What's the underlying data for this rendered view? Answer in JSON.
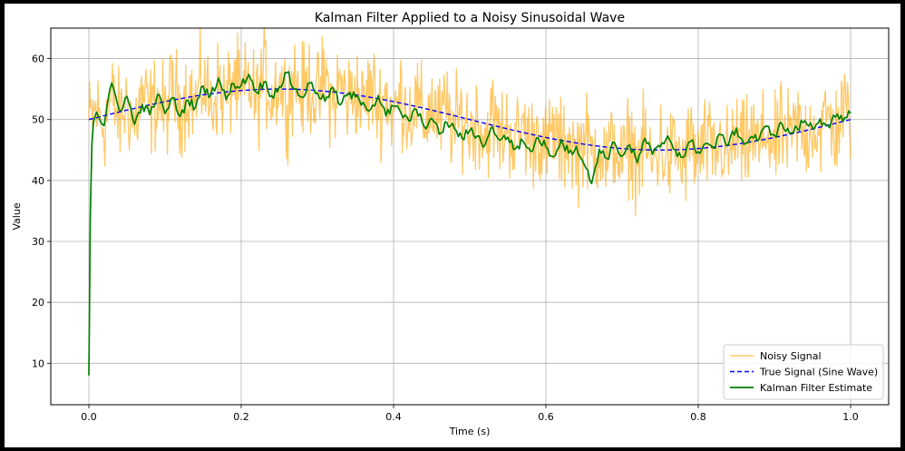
{
  "chart_data": {
    "type": "line",
    "title": "Kalman Filter Applied to a Noisy Sinusoidal Wave",
    "xlabel": "Time (s)",
    "ylabel": "Value",
    "xlim": [
      -0.05,
      1.05
    ],
    "ylim": [
      3.2,
      65.0
    ],
    "xticks": [
      0.0,
      0.2,
      0.4,
      0.6,
      0.8,
      1.0
    ],
    "xtick_labels": [
      "0.0",
      "0.2",
      "0.4",
      "0.6",
      "0.8",
      "1.0"
    ],
    "yticks": [
      10,
      20,
      30,
      40,
      50,
      60
    ],
    "ytick_labels": [
      "10",
      "20",
      "30",
      "40",
      "50",
      "60"
    ],
    "grid": true,
    "legend_position": "bottom-right",
    "series": [
      {
        "name": "Noisy Signal",
        "color": "#FFA500",
        "style": "solid",
        "note_sampling": "approx. 1000 samples; values around true signal with noise std about 4",
        "x": [
          0.0,
          0.01,
          0.02,
          0.03,
          0.04,
          0.05,
          0.06,
          0.07,
          0.08,
          0.09,
          0.1,
          0.11,
          0.12,
          0.13,
          0.14,
          0.15,
          0.16,
          0.17,
          0.18,
          0.19,
          0.2,
          0.21,
          0.22,
          0.23,
          0.24,
          0.25,
          0.26,
          0.27,
          0.28,
          0.29,
          0.3,
          0.31,
          0.32,
          0.33,
          0.34,
          0.35,
          0.36,
          0.37,
          0.38,
          0.39,
          0.4,
          0.41,
          0.42,
          0.43,
          0.44,
          0.45,
          0.46,
          0.47,
          0.48,
          0.49,
          0.5,
          0.51,
          0.52,
          0.53,
          0.54,
          0.55,
          0.56,
          0.57,
          0.58,
          0.59,
          0.6,
          0.61,
          0.62,
          0.63,
          0.64,
          0.65,
          0.66,
          0.67,
          0.68,
          0.69,
          0.7,
          0.71,
          0.72,
          0.73,
          0.74,
          0.75,
          0.76,
          0.77,
          0.78,
          0.79,
          0.8,
          0.81,
          0.82,
          0.83,
          0.84,
          0.85,
          0.86,
          0.87,
          0.88,
          0.89,
          0.9,
          0.91,
          0.92,
          0.93,
          0.94,
          0.95,
          0.96,
          0.97,
          0.98,
          0.99,
          1.0
        ],
        "values": [
          48.5,
          53.8,
          46.0,
          58.5,
          47.2,
          55.4,
          44.0,
          57.6,
          49.0,
          54.9,
          46.5,
          59.2,
          48.8,
          56.3,
          50.1,
          60.5,
          47.6,
          57.8,
          49.5,
          61.2,
          50.3,
          58.7,
          48.2,
          62.0,
          51.6,
          59.4,
          49.1,
          60.8,
          52.3,
          58.2,
          50.0,
          61.5,
          48.7,
          59.6,
          51.2,
          57.3,
          47.9,
          58.9,
          49.6,
          56.1,
          45.8,
          57.4,
          47.1,
          55.0,
          44.6,
          54.8,
          46.2,
          53.5,
          43.7,
          52.6,
          45.0,
          51.9,
          42.5,
          52.8,
          44.3,
          50.4,
          41.6,
          51.7,
          43.2,
          49.8,
          40.1,
          50.6,
          42.0,
          48.7,
          39.5,
          49.9,
          40.8,
          47.6,
          38.2,
          48.9,
          36.4,
          49.3,
          39.0,
          47.1,
          37.5,
          48.4,
          38.8,
          46.9,
          36.8,
          49.0,
          39.6,
          48.2,
          40.5,
          47.8,
          39.2,
          50.1,
          41.3,
          49.5,
          42.6,
          51.2,
          40.9,
          50.7,
          43.8,
          52.4,
          44.1,
          51.8,
          45.6,
          53.9,
          44.7,
          55.2,
          50.9
        ]
      },
      {
        "name": "True Signal (Sine Wave)",
        "color": "#0000FF",
        "style": "dashed",
        "x": [
          0.0,
          0.01,
          0.02,
          0.03,
          0.04,
          0.05,
          0.06,
          0.07,
          0.08,
          0.09,
          0.1,
          0.11,
          0.12,
          0.13,
          0.14,
          0.15,
          0.16,
          0.17,
          0.18,
          0.19,
          0.2,
          0.21,
          0.22,
          0.23,
          0.24,
          0.25,
          0.26,
          0.27,
          0.28,
          0.29,
          0.3,
          0.31,
          0.32,
          0.33,
          0.34,
          0.35,
          0.36,
          0.37,
          0.38,
          0.39,
          0.4,
          0.41,
          0.42,
          0.43,
          0.44,
          0.45,
          0.46,
          0.47,
          0.48,
          0.49,
          0.5,
          0.51,
          0.52,
          0.53,
          0.54,
          0.55,
          0.56,
          0.57,
          0.58,
          0.59,
          0.6,
          0.61,
          0.62,
          0.63,
          0.64,
          0.65,
          0.66,
          0.67,
          0.68,
          0.69,
          0.7,
          0.71,
          0.72,
          0.73,
          0.74,
          0.75,
          0.76,
          0.77,
          0.78,
          0.79,
          0.8,
          0.81,
          0.82,
          0.83,
          0.84,
          0.85,
          0.86,
          0.87,
          0.88,
          0.89,
          0.9,
          0.91,
          0.92,
          0.93,
          0.94,
          0.95,
          0.96,
          0.97,
          0.98,
          0.99,
          1.0
        ],
        "values": [
          50.0,
          50.31,
          50.63,
          50.94,
          51.24,
          51.55,
          51.84,
          52.13,
          52.41,
          52.68,
          52.94,
          53.19,
          53.42,
          53.64,
          53.85,
          54.05,
          54.22,
          54.38,
          54.53,
          54.65,
          54.76,
          54.85,
          54.92,
          54.97,
          55.0,
          55.01,
          55.0,
          54.97,
          54.92,
          54.85,
          54.76,
          54.65,
          54.53,
          54.38,
          54.22,
          54.05,
          53.85,
          53.64,
          53.42,
          53.19,
          52.94,
          52.68,
          52.41,
          52.13,
          51.84,
          51.55,
          51.24,
          50.94,
          50.63,
          50.31,
          50.0,
          49.69,
          49.37,
          49.06,
          48.76,
          48.45,
          48.16,
          47.87,
          47.59,
          47.32,
          47.06,
          46.81,
          46.58,
          46.36,
          46.15,
          45.95,
          45.78,
          45.62,
          45.47,
          45.35,
          45.24,
          45.15,
          45.08,
          45.03,
          45.0,
          44.99,
          45.0,
          45.03,
          45.08,
          45.15,
          45.24,
          45.35,
          45.47,
          45.62,
          45.78,
          45.95,
          46.15,
          46.36,
          46.58,
          46.81,
          47.06,
          47.32,
          47.59,
          47.87,
          48.16,
          48.45,
          48.76,
          49.06,
          49.37,
          49.69,
          50.0
        ]
      },
      {
        "name": "Kalman Filter Estimate",
        "color": "#008000",
        "style": "solid",
        "x": [
          0.0,
          0.002,
          0.004,
          0.006,
          0.008,
          0.01,
          0.02,
          0.03,
          0.04,
          0.05,
          0.06,
          0.07,
          0.08,
          0.09,
          0.1,
          0.11,
          0.12,
          0.13,
          0.14,
          0.15,
          0.16,
          0.17,
          0.18,
          0.19,
          0.2,
          0.21,
          0.22,
          0.23,
          0.24,
          0.25,
          0.26,
          0.27,
          0.28,
          0.29,
          0.3,
          0.31,
          0.32,
          0.33,
          0.34,
          0.35,
          0.36,
          0.37,
          0.38,
          0.39,
          0.4,
          0.41,
          0.42,
          0.43,
          0.44,
          0.45,
          0.46,
          0.47,
          0.48,
          0.49,
          0.5,
          0.51,
          0.52,
          0.53,
          0.54,
          0.55,
          0.56,
          0.57,
          0.58,
          0.59,
          0.6,
          0.61,
          0.62,
          0.63,
          0.64,
          0.65,
          0.66,
          0.67,
          0.68,
          0.69,
          0.7,
          0.71,
          0.72,
          0.73,
          0.74,
          0.75,
          0.76,
          0.77,
          0.78,
          0.79,
          0.8,
          0.81,
          0.82,
          0.83,
          0.84,
          0.85,
          0.86,
          0.87,
          0.88,
          0.89,
          0.9,
          0.91,
          0.92,
          0.93,
          0.94,
          0.95,
          0.96,
          0.97,
          0.98,
          0.99,
          1.0
        ],
        "values": [
          8.0,
          35.0,
          46.0,
          49.5,
          50.5,
          51.2,
          49.0,
          56.0,
          51.5,
          53.8,
          49.2,
          52.5,
          50.8,
          54.1,
          51.0,
          53.6,
          50.5,
          53.2,
          52.0,
          55.5,
          54.0,
          56.8,
          53.3,
          55.9,
          55.6,
          57.4,
          54.5,
          56.2,
          53.9,
          55.4,
          57.7,
          55.0,
          53.6,
          56.0,
          54.4,
          53.0,
          55.3,
          52.4,
          54.1,
          53.7,
          52.8,
          51.7,
          53.9,
          50.6,
          52.2,
          51.0,
          49.8,
          51.6,
          48.9,
          50.2,
          47.6,
          49.5,
          48.5,
          46.9,
          48.2,
          47.3,
          45.8,
          48.8,
          46.6,
          47.1,
          45.2,
          46.4,
          44.8,
          47.0,
          45.5,
          43.9,
          46.7,
          44.5,
          45.6,
          42.7,
          39.5,
          45.1,
          43.6,
          46.2,
          44.0,
          45.8,
          42.9,
          46.9,
          44.3,
          45.5,
          47.3,
          45.0,
          43.8,
          46.4,
          44.7,
          46.1,
          45.3,
          47.5,
          46.0,
          48.6,
          45.9,
          47.2,
          46.8,
          48.9,
          47.4,
          49.3,
          47.7,
          48.5,
          49.8,
          48.6,
          50.1,
          49.0,
          50.4,
          49.7,
          51.0
        ]
      }
    ]
  }
}
